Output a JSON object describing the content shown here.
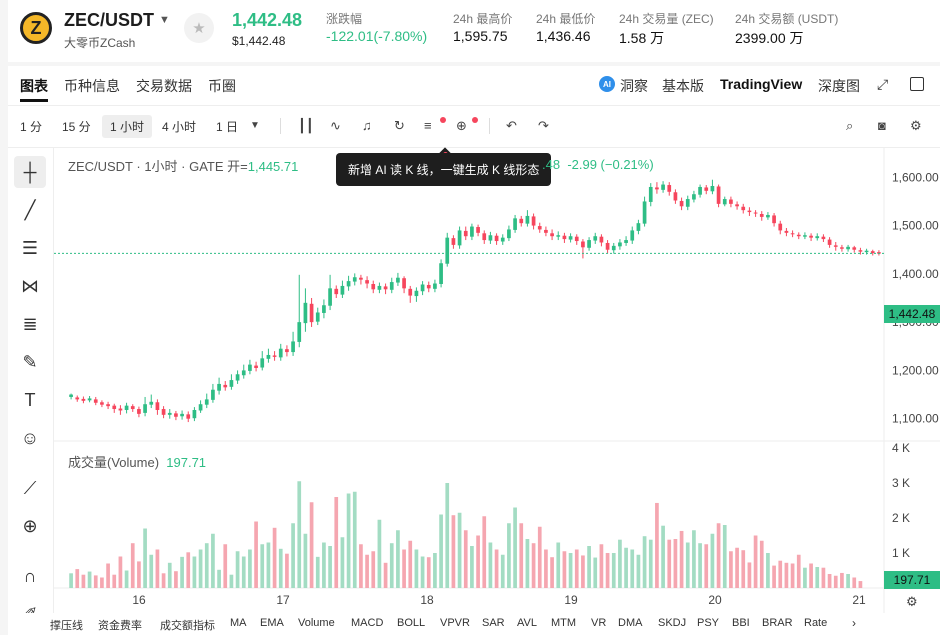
{
  "header": {
    "coin_symbol": "Z",
    "pair": "ZEC/USDT",
    "sub": "大零币ZCash",
    "price": "1,442.48",
    "price_usd": "$1,442.48",
    "stats": [
      {
        "label": "涨跌幅",
        "value": "-122.01(-7.80%)",
        "green": true
      },
      {
        "label": "24h 最高价",
        "value": "1,595.75",
        "green": false
      },
      {
        "label": "24h 最低价",
        "value": "1,436.46",
        "green": false
      },
      {
        "label": "24h 交易量 (ZEC)",
        "value": "1.58 万",
        "green": false
      },
      {
        "label": "24h 交易额 (USDT)",
        "value": "2399.00 万",
        "green": false
      }
    ]
  },
  "tabs": [
    "图表",
    "币种信息",
    "交易数据",
    "币圈"
  ],
  "right_tabs": {
    "ai": "洞察",
    "basic": "基本版",
    "tv": "TradingView",
    "depth": "深度图"
  },
  "timeframes": [
    "1 分",
    "15 分",
    "1 小时",
    "4 小时",
    "1 日"
  ],
  "active_timeframe": "1 小时",
  "legend": {
    "symbol": "ZEC/USDT · 1小时 · GATE",
    "open_label": "开=",
    "open": "1,445.71",
    "close_tail": ".48",
    "change": "-2.99 (−0.21%)"
  },
  "tooltip": "新增 AI 读 K 线，一键生成 K 线形态",
  "volume": {
    "label": "成交量(Volume)",
    "value": "197.71"
  },
  "last_price": "1,442.48",
  "price_ticks": [
    "1,600.00",
    "1,500.00",
    "1,400.00",
    "1,300.00",
    "1,200.00",
    "1,100.00"
  ],
  "vol_ticks": [
    "4 K",
    "3 K",
    "2 K",
    "1 K"
  ],
  "x_ticks": [
    "16",
    "17",
    "18",
    "19",
    "20",
    "21"
  ],
  "indicators": [
    "撑压线",
    "资金费率",
    "成交额指标",
    "MA",
    "EMA",
    "Volume",
    "MACD",
    "BOLL",
    "VPVR",
    "SAR",
    "AVL",
    "MTM",
    "VR",
    "DMA",
    "SKDJ",
    "PSY",
    "BBI",
    "BRAR",
    "Rate"
  ],
  "colors": {
    "up": "#2ebd85",
    "down": "#f6465d"
  },
  "chart_data": {
    "type": "candlestick",
    "price_ylim": [
      1060,
      1640
    ],
    "volume_ylim": [
      0,
      4000
    ],
    "candles": [
      [
        1145,
        1150,
        1140,
        1152
      ],
      [
        1144,
        1140,
        1135,
        1148
      ],
      [
        1141,
        1137,
        1132,
        1146
      ],
      [
        1138,
        1142,
        1134,
        1147
      ],
      [
        1140,
        1133,
        1128,
        1145
      ],
      [
        1134,
        1129,
        1124,
        1138
      ],
      [
        1130,
        1126,
        1120,
        1135
      ],
      [
        1127,
        1120,
        1112,
        1131
      ],
      [
        1121,
        1117,
        1108,
        1128
      ],
      [
        1118,
        1127,
        1111,
        1133
      ],
      [
        1126,
        1120,
        1114,
        1130
      ],
      [
        1120,
        1110,
        1103,
        1125
      ],
      [
        1112,
        1130,
        1105,
        1145
      ],
      [
        1129,
        1135,
        1122,
        1150
      ],
      [
        1134,
        1118,
        1108,
        1140
      ],
      [
        1120,
        1108,
        1101,
        1126
      ],
      [
        1108,
        1112,
        1100,
        1120
      ],
      [
        1111,
        1104,
        1097,
        1116
      ],
      [
        1105,
        1110,
        1098,
        1117
      ],
      [
        1109,
        1100,
        1093,
        1115
      ],
      [
        1101,
        1118,
        1095,
        1124
      ],
      [
        1117,
        1130,
        1112,
        1138
      ],
      [
        1129,
        1140,
        1122,
        1152
      ],
      [
        1139,
        1160,
        1133,
        1172
      ],
      [
        1158,
        1172,
        1150,
        1185
      ],
      [
        1170,
        1165,
        1158,
        1178
      ],
      [
        1166,
        1180,
        1160,
        1192
      ],
      [
        1179,
        1192,
        1172,
        1200
      ],
      [
        1190,
        1200,
        1183,
        1212
      ],
      [
        1199,
        1212,
        1192,
        1222
      ],
      [
        1210,
        1205,
        1198,
        1218
      ],
      [
        1206,
        1225,
        1200,
        1240
      ],
      [
        1224,
        1232,
        1216,
        1245
      ],
      [
        1231,
        1228,
        1220,
        1240
      ],
      [
        1227,
        1245,
        1220,
        1255
      ],
      [
        1244,
        1238,
        1229,
        1252
      ],
      [
        1238,
        1260,
        1230,
        1280
      ],
      [
        1259,
        1300,
        1248,
        1398
      ],
      [
        1298,
        1340,
        1280,
        1370
      ],
      [
        1338,
        1300,
        1290,
        1350
      ],
      [
        1301,
        1320,
        1294,
        1330
      ],
      [
        1319,
        1335,
        1308,
        1347
      ],
      [
        1334,
        1370,
        1325,
        1398
      ],
      [
        1369,
        1358,
        1350,
        1376
      ],
      [
        1357,
        1375,
        1350,
        1386
      ],
      [
        1374,
        1385,
        1365,
        1396
      ],
      [
        1384,
        1393,
        1376,
        1401
      ],
      [
        1392,
        1388,
        1378,
        1398
      ],
      [
        1387,
        1380,
        1370,
        1395
      ],
      [
        1379,
        1368,
        1360,
        1386
      ],
      [
        1367,
        1375,
        1360,
        1382
      ],
      [
        1374,
        1368,
        1358,
        1380
      ],
      [
        1367,
        1383,
        1360,
        1392
      ],
      [
        1382,
        1392,
        1375,
        1402
      ],
      [
        1391,
        1370,
        1360,
        1395
      ],
      [
        1369,
        1355,
        1340,
        1375
      ],
      [
        1354,
        1365,
        1342,
        1372
      ],
      [
        1364,
        1378,
        1356,
        1385
      ],
      [
        1377,
        1370,
        1362,
        1384
      ],
      [
        1369,
        1380,
        1362,
        1388
      ],
      [
        1379,
        1422,
        1372,
        1430
      ],
      [
        1421,
        1475,
        1415,
        1485
      ],
      [
        1474,
        1460,
        1452,
        1480
      ],
      [
        1459,
        1490,
        1452,
        1498
      ],
      [
        1489,
        1478,
        1470,
        1498
      ],
      [
        1477,
        1498,
        1470,
        1504
      ],
      [
        1497,
        1485,
        1478,
        1502
      ],
      [
        1484,
        1470,
        1462,
        1490
      ],
      [
        1469,
        1480,
        1462,
        1487
      ],
      [
        1479,
        1468,
        1460,
        1484
      ],
      [
        1467,
        1475,
        1460,
        1482
      ],
      [
        1474,
        1492,
        1468,
        1500
      ],
      [
        1491,
        1515,
        1485,
        1522
      ],
      [
        1514,
        1505,
        1498,
        1520
      ],
      [
        1504,
        1520,
        1498,
        1532
      ],
      [
        1519,
        1500,
        1492,
        1525
      ],
      [
        1499,
        1492,
        1485,
        1506
      ],
      [
        1491,
        1485,
        1478,
        1498
      ],
      [
        1484,
        1478,
        1470,
        1492
      ],
      [
        1477,
        1480,
        1470,
        1488
      ],
      [
        1479,
        1472,
        1464,
        1485
      ],
      [
        1471,
        1478,
        1465,
        1484
      ],
      [
        1477,
        1468,
        1460,
        1482
      ],
      [
        1467,
        1455,
        1432,
        1472
      ],
      [
        1454,
        1470,
        1448,
        1476
      ],
      [
        1469,
        1478,
        1462,
        1485
      ],
      [
        1477,
        1465,
        1457,
        1482
      ],
      [
        1464,
        1450,
        1442,
        1470
      ],
      [
        1449,
        1458,
        1442,
        1464
      ],
      [
        1457,
        1465,
        1450,
        1472
      ],
      [
        1464,
        1470,
        1458,
        1478
      ],
      [
        1469,
        1490,
        1462,
        1498
      ],
      [
        1489,
        1505,
        1482,
        1512
      ],
      [
        1504,
        1550,
        1498,
        1560
      ],
      [
        1549,
        1580,
        1540,
        1588
      ],
      [
        1579,
        1575,
        1566,
        1590
      ],
      [
        1574,
        1585,
        1568,
        1592
      ],
      [
        1584,
        1570,
        1562,
        1590
      ],
      [
        1569,
        1552,
        1545,
        1575
      ],
      [
        1551,
        1540,
        1532,
        1558
      ],
      [
        1539,
        1555,
        1532,
        1562
      ],
      [
        1554,
        1565,
        1548,
        1572
      ],
      [
        1564,
        1580,
        1558,
        1585
      ],
      [
        1579,
        1572,
        1565,
        1584
      ],
      [
        1571,
        1582,
        1565,
        1595
      ],
      [
        1581,
        1545,
        1538,
        1585
      ],
      [
        1544,
        1555,
        1540,
        1560
      ],
      [
        1554,
        1545,
        1538,
        1560
      ],
      [
        1544,
        1540,
        1533,
        1550
      ],
      [
        1539,
        1532,
        1525,
        1545
      ],
      [
        1531,
        1528,
        1520,
        1538
      ],
      [
        1527,
        1525,
        1518,
        1532
      ],
      [
        1524,
        1518,
        1510,
        1530
      ],
      [
        1517,
        1522,
        1512,
        1528
      ],
      [
        1521,
        1505,
        1498,
        1526
      ],
      [
        1504,
        1490,
        1482,
        1510
      ],
      [
        1489,
        1485,
        1478,
        1495
      ],
      [
        1484,
        1482,
        1476,
        1490
      ],
      [
        1481,
        1478,
        1472,
        1486
      ],
      [
        1477,
        1480,
        1472,
        1486
      ],
      [
        1479,
        1475,
        1468,
        1484
      ],
      [
        1474,
        1478,
        1469,
        1484
      ],
      [
        1477,
        1472,
        1466,
        1482
      ],
      [
        1471,
        1460,
        1454,
        1476
      ],
      [
        1459,
        1456,
        1448,
        1466
      ],
      [
        1455,
        1452,
        1446,
        1460
      ],
      [
        1451,
        1456,
        1446,
        1460
      ],
      [
        1455,
        1450,
        1444,
        1458
      ],
      [
        1449,
        1446,
        1440,
        1454
      ],
      [
        1445,
        1448,
        1440,
        1452
      ],
      [
        1447,
        1443,
        1438,
        1450
      ],
      [
        1445,
        1442,
        1438,
        1449
      ]
    ],
    "volumes": [
      420,
      540,
      380,
      470,
      360,
      300,
      700,
      380,
      900,
      500,
      1280,
      760,
      1700,
      950,
      1100,
      420,
      720,
      480,
      890,
      1020,
      900,
      1100,
      1280,
      1550,
      520,
      1250,
      380,
      1050,
      900,
      1100,
      1900,
      1250,
      1300,
      1720,
      1120,
      980,
      1850,
      3050,
      1550,
      2450,
      890,
      1300,
      1200,
      2600,
      1450,
      2700,
      2750,
      1250,
      950,
      1050,
      1950,
      720,
      1280,
      1650,
      1100,
      1350,
      1100,
      900,
      880,
      1000,
      2100,
      3000,
      2080,
      2150,
      1650,
      1200,
      1500,
      2050,
      1300,
      1100,
      950,
      1850,
      2300,
      1850,
      1400,
      1280,
      1750,
      1100,
      880,
      1300,
      1050,
      1000,
      1100,
      930,
      1200,
      870,
      1250,
      1000,
      1000,
      1380,
      1150,
      1100,
      950,
      1480,
      1380,
      2430,
      1780,
      1380,
      1400,
      1630,
      1300,
      1650,
      1280,
      1250,
      1550,
      1850,
      1800,
      1050,
      1150,
      1080,
      730,
      1500,
      1350,
      1000,
      640,
      780,
      720,
      700,
      950,
      580,
      700,
      600,
      580,
      400,
      350,
      430,
      400,
      300,
      198
    ]
  }
}
